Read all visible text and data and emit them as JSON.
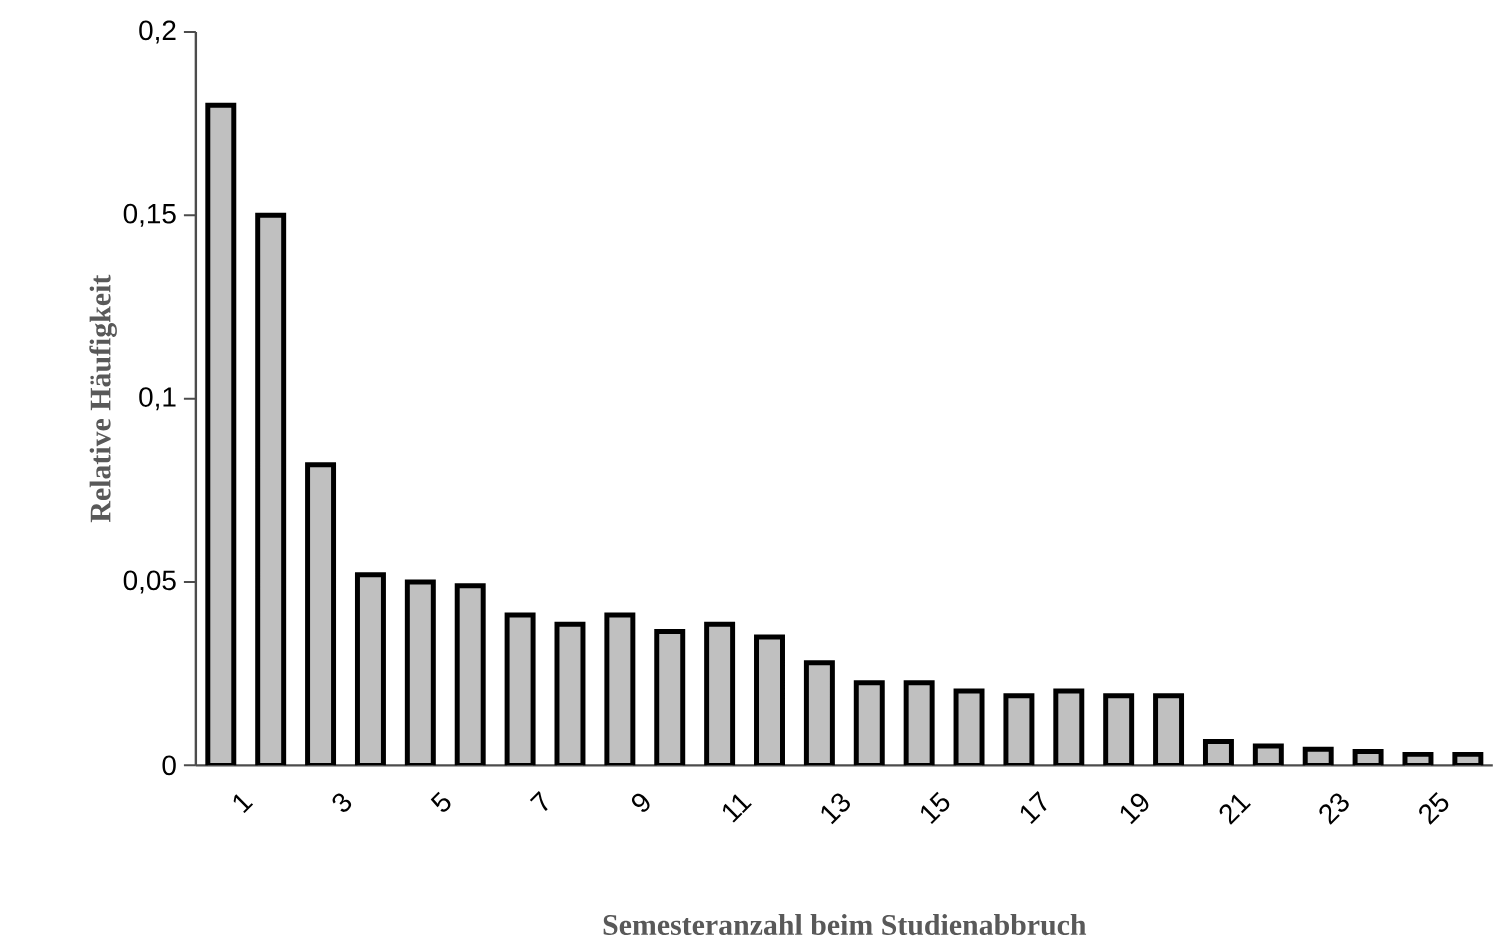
{
  "chart_data": {
    "type": "bar",
    "xlabel": "Semesteranzahl beim Studienabbruch",
    "ylabel": "Relative Häufigkeit",
    "categories": [
      "1",
      null,
      "3",
      null,
      "5",
      null,
      "7",
      null,
      "9",
      null,
      "11",
      null,
      "13",
      null,
      "15",
      null,
      "17",
      null,
      "19",
      null,
      "21",
      null,
      "23",
      null,
      "25",
      null
    ],
    "values": [
      0.18,
      0.15,
      0.082,
      0.052,
      0.05,
      0.049,
      0.041,
      0.0385,
      0.041,
      0.0365,
      0.0385,
      0.035,
      0.028,
      0.0225,
      0.0225,
      0.0203,
      0.019,
      0.0203,
      0.019,
      0.019,
      0.0065,
      0.0053,
      0.0044,
      0.0038,
      0.003,
      0.003
    ],
    "color": "#c0c0c0",
    "ylim": [
      0,
      0.2
    ],
    "yticks": [
      {
        "value": 0,
        "label": "0"
      },
      {
        "value": 0.05,
        "label": "0,05"
      },
      {
        "value": 0.1,
        "label": "0,1"
      },
      {
        "value": 0.15,
        "label": "0,15"
      },
      {
        "value": 0.2,
        "label": "0,2"
      }
    ],
    "grid": false
  }
}
